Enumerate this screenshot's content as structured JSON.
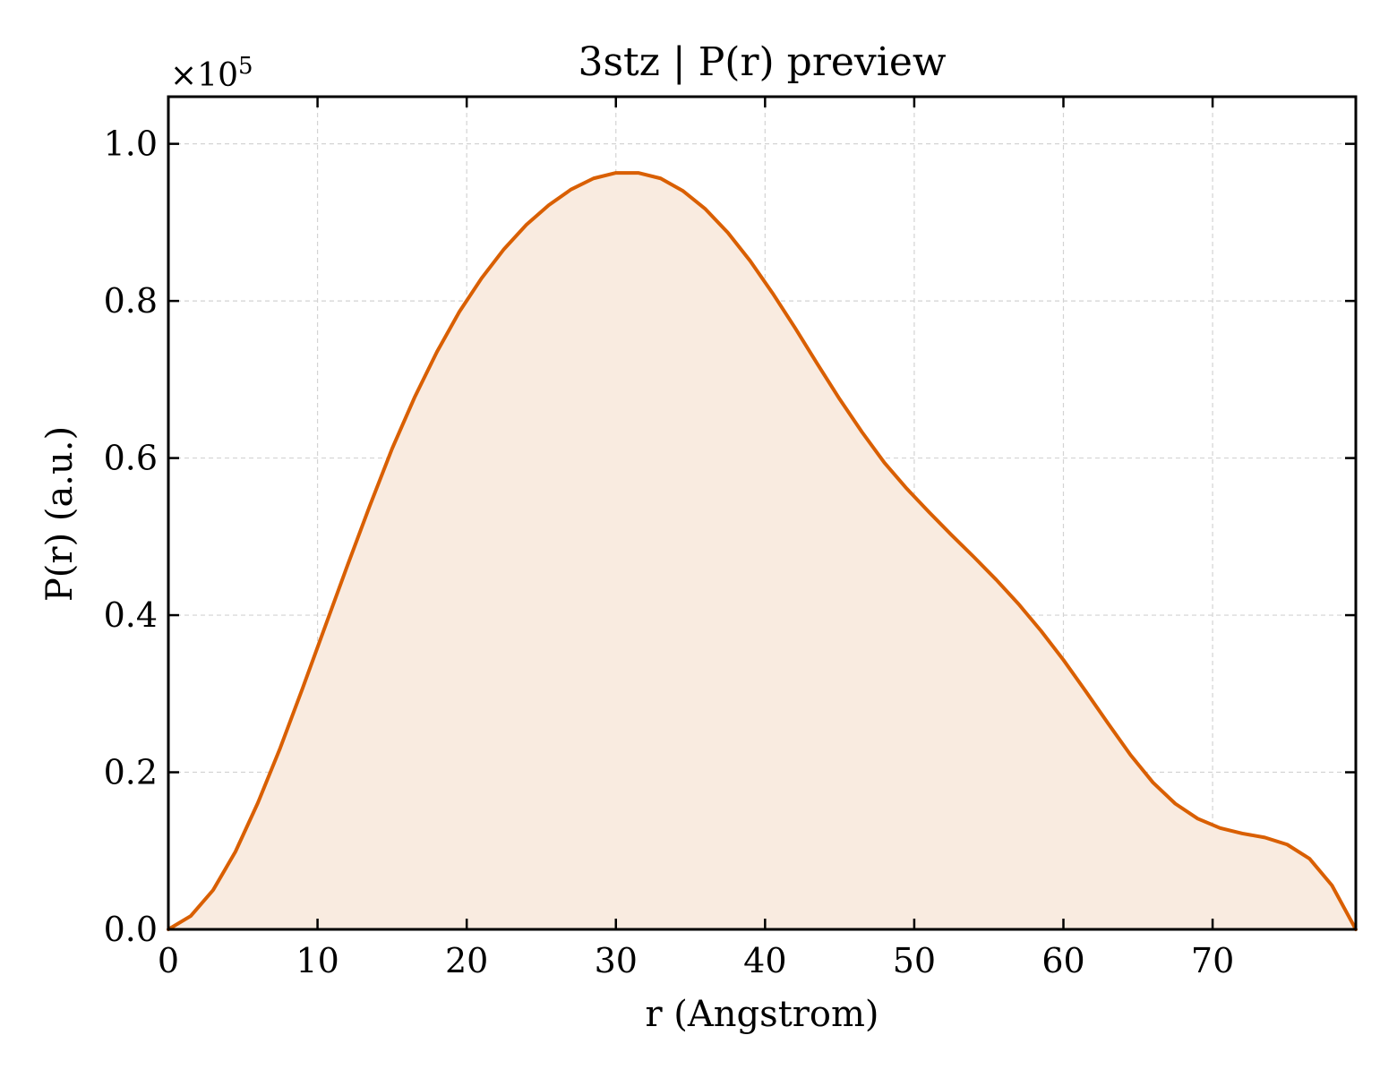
{
  "chart_data": {
    "type": "area",
    "title": "3stz | P(r) preview",
    "xlabel": "r (Angstrom)",
    "ylabel": "P(r) (a.u.)",
    "y_multiplier_label": "×10",
    "y_multiplier_exponent": "5",
    "xlim": [
      0,
      79.6
    ],
    "ylim": [
      0,
      1.06
    ],
    "x_ticks": [
      0,
      10,
      20,
      30,
      40,
      50,
      60,
      70
    ],
    "x_tick_labels": [
      "0",
      "10",
      "20",
      "30",
      "40",
      "50",
      "60",
      "70"
    ],
    "y_ticks": [
      0,
      0.2,
      0.4,
      0.6,
      0.8,
      1.0
    ],
    "y_tick_labels": [
      "0.0",
      "0.2",
      "0.4",
      "0.6",
      "0.8",
      "1.0"
    ],
    "grid": true,
    "line_color": "#d95f02",
    "fill_color": "#f9ebe0",
    "series": [
      {
        "x": [
          0,
          1.5,
          3,
          4.5,
          6,
          7.5,
          9,
          10.5,
          12,
          13.5,
          15,
          16.5,
          18,
          19.5,
          21,
          22.5,
          24,
          25.5,
          27,
          28.5,
          30,
          31.5,
          33,
          34.5,
          36,
          37.5,
          39,
          40.5,
          42,
          43.5,
          45,
          46.5,
          48,
          49.5,
          51,
          52.5,
          54,
          55.5,
          57,
          58.5,
          60,
          61.5,
          63,
          64.5,
          66,
          67.5,
          69,
          70.5,
          72,
          73.5,
          75,
          76.5,
          78,
          79.6
        ],
        "y": [
          0,
          0.017,
          0.05,
          0.099,
          0.161,
          0.231,
          0.307,
          0.385,
          0.463,
          0.539,
          0.612,
          0.677,
          0.735,
          0.786,
          0.829,
          0.866,
          0.897,
          0.922,
          0.942,
          0.956,
          0.963,
          0.963,
          0.956,
          0.94,
          0.917,
          0.887,
          0.851,
          0.81,
          0.766,
          0.72,
          0.675,
          0.633,
          0.594,
          0.561,
          0.531,
          0.502,
          0.474,
          0.445,
          0.414,
          0.38,
          0.343,
          0.303,
          0.262,
          0.222,
          0.187,
          0.16,
          0.141,
          0.129,
          0.122,
          0.117,
          0.108,
          0.09,
          0.056,
          0
        ]
      }
    ]
  }
}
